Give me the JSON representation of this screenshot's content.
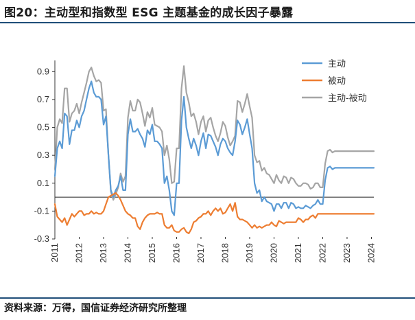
{
  "title": "图20：主动型和指数型 ESG 主题基金的成长因子暴露",
  "source": "资料来源：万得，国信证券经济研究所整理",
  "chart_data": {
    "type": "line",
    "title": "图20：主动型和指数型 ESG 主题基金的成长因子暴露",
    "xlabel": "",
    "ylabel": "",
    "ylim": [
      -0.3,
      1.0
    ],
    "yticks": [
      "0.9",
      "0.7",
      "0.5",
      "0.3",
      "0.1",
      "-0.1",
      "-0.3"
    ],
    "ytick_values": [
      0.9,
      0.7,
      0.5,
      0.3,
      0.1,
      -0.1,
      -0.3
    ],
    "xlim": [
      2011,
      2024.1
    ],
    "xticks": [
      "2011",
      "2012",
      "2013",
      "2014",
      "2015",
      "2016",
      "2017",
      "2018",
      "2019",
      "2020",
      "2021",
      "2022",
      "2023",
      "2024"
    ],
    "xtick_values": [
      2011,
      2012,
      2013,
      2014,
      2015,
      2016,
      2017,
      2018,
      2019,
      2020,
      2021,
      2022,
      2023,
      2024
    ],
    "legend_position": "top-right",
    "series": [
      {
        "name": "主动",
        "color": "#5b9bd5",
        "x": [
          2011.0,
          2011.1,
          2011.2,
          2011.3,
          2011.4,
          2011.5,
          2011.6,
          2011.7,
          2011.8,
          2011.9,
          2012.0,
          2012.1,
          2012.2,
          2012.3,
          2012.4,
          2012.5,
          2012.6,
          2012.7,
          2012.8,
          2012.9,
          2013.0,
          2013.1,
          2013.2,
          2013.3,
          2013.4,
          2013.5,
          2013.6,
          2013.7,
          2013.8,
          2013.9,
          2014.0,
          2014.1,
          2014.2,
          2014.3,
          2014.4,
          2014.5,
          2014.6,
          2014.7,
          2014.8,
          2014.9,
          2015.0,
          2015.1,
          2015.2,
          2015.3,
          2015.4,
          2015.5,
          2015.6,
          2015.7,
          2015.8,
          2015.9,
          2016.0,
          2016.1,
          2016.2,
          2016.3,
          2016.4,
          2016.5,
          2016.6,
          2016.7,
          2016.8,
          2016.9,
          2017.0,
          2017.1,
          2017.2,
          2017.3,
          2017.4,
          2017.5,
          2017.6,
          2017.7,
          2017.8,
          2017.9,
          2018.0,
          2018.1,
          2018.2,
          2018.3,
          2018.4,
          2018.5,
          2018.6,
          2018.7,
          2018.8,
          2018.9,
          2019.0,
          2019.1,
          2019.2,
          2019.3,
          2019.4,
          2019.5,
          2019.6,
          2019.7,
          2019.8,
          2019.9,
          2020.0,
          2020.1,
          2020.2,
          2020.3,
          2020.4,
          2020.5,
          2020.6,
          2020.7,
          2020.8,
          2020.9,
          2021.0,
          2021.1,
          2021.2,
          2021.3,
          2021.4,
          2021.5,
          2021.6,
          2021.7,
          2021.8,
          2021.9,
          2022.0,
          2022.1,
          2022.2,
          2022.3,
          2022.4,
          2022.5,
          2022.6,
          2022.7,
          2022.8,
          2022.9,
          2023.0,
          2023.1,
          2023.2,
          2023.3,
          2023.4,
          2023.5,
          2023.6,
          2023.7,
          2023.8,
          2023.9,
          2024.0,
          2024.1
        ],
        "values": [
          0.15,
          0.35,
          0.4,
          0.35,
          0.6,
          0.58,
          0.38,
          0.48,
          0.48,
          0.55,
          0.5,
          0.58,
          0.62,
          0.7,
          0.78,
          0.83,
          0.75,
          0.72,
          0.72,
          0.7,
          0.52,
          0.58,
          0.3,
          0.05,
          0.0,
          0.05,
          0.08,
          0.15,
          0.05,
          0.05,
          0.45,
          0.56,
          0.47,
          0.47,
          0.49,
          0.45,
          0.42,
          0.36,
          0.48,
          0.45,
          0.52,
          0.4,
          0.4,
          0.38,
          0.35,
          0.1,
          0.15,
          0.05,
          -0.1,
          -0.13,
          0.1,
          0.1,
          0.55,
          0.72,
          0.5,
          0.42,
          0.35,
          0.42,
          0.37,
          0.3,
          0.4,
          0.46,
          0.35,
          0.45,
          0.44,
          0.4,
          0.36,
          0.3,
          0.38,
          0.42,
          0.4,
          0.35,
          0.32,
          0.3,
          0.4,
          0.55,
          0.52,
          0.45,
          0.5,
          0.56,
          0.45,
          0.35,
          0.1,
          0.03,
          0.05,
          -0.03,
          0.0,
          -0.03,
          -0.04,
          -0.05,
          -0.1,
          -0.05,
          -0.05,
          -0.08,
          -0.04,
          -0.04,
          -0.08,
          -0.04,
          -0.05,
          -0.08,
          -0.07,
          -0.08,
          -0.08,
          -0.06,
          -0.07,
          -0.08,
          -0.06,
          -0.05,
          -0.02,
          -0.05,
          -0.05,
          0.12,
          0.21,
          0.22,
          0.2,
          0.21,
          0.21,
          0.21,
          0.21,
          0.21,
          0.21,
          0.21,
          0.21,
          0.21,
          0.21,
          0.21,
          0.21,
          0.21,
          0.21,
          0.21,
          0.21,
          0.21
        ]
      },
      {
        "name": "被动",
        "color": "#ed7d31",
        "x": [
          2011.0,
          2011.1,
          2011.2,
          2011.3,
          2011.4,
          2011.5,
          2011.6,
          2011.7,
          2011.8,
          2011.9,
          2012.0,
          2012.1,
          2012.2,
          2012.3,
          2012.4,
          2012.5,
          2012.6,
          2012.7,
          2012.8,
          2012.9,
          2013.0,
          2013.1,
          2013.2,
          2013.3,
          2013.4,
          2013.5,
          2013.6,
          2013.7,
          2013.8,
          2013.9,
          2014.0,
          2014.1,
          2014.2,
          2014.3,
          2014.4,
          2014.5,
          2014.6,
          2014.7,
          2014.8,
          2014.9,
          2015.0,
          2015.1,
          2015.2,
          2015.3,
          2015.4,
          2015.5,
          2015.6,
          2015.7,
          2015.8,
          2015.9,
          2016.0,
          2016.1,
          2016.2,
          2016.3,
          2016.4,
          2016.5,
          2016.6,
          2016.7,
          2016.8,
          2016.9,
          2017.0,
          2017.1,
          2017.2,
          2017.3,
          2017.4,
          2017.5,
          2017.6,
          2017.7,
          2017.8,
          2017.9,
          2018.0,
          2018.1,
          2018.2,
          2018.3,
          2018.4,
          2018.5,
          2018.6,
          2018.7,
          2018.8,
          2018.9,
          2019.0,
          2019.1,
          2019.2,
          2019.3,
          2019.4,
          2019.5,
          2019.6,
          2019.7,
          2019.8,
          2019.9,
          2020.0,
          2020.1,
          2020.2,
          2020.3,
          2020.4,
          2020.5,
          2020.6,
          2020.7,
          2020.8,
          2020.9,
          2021.0,
          2021.1,
          2021.2,
          2021.3,
          2021.4,
          2021.5,
          2021.6,
          2021.7,
          2021.8,
          2021.9,
          2022.0,
          2022.1,
          2022.2,
          2022.3,
          2022.4,
          2022.5,
          2022.6,
          2022.7,
          2022.8,
          2022.9,
          2023.0,
          2023.1,
          2023.2,
          2023.3,
          2023.4,
          2023.5,
          2023.6,
          2023.7,
          2023.8,
          2023.9,
          2024.0,
          2024.1
        ],
        "values": [
          -0.05,
          -0.14,
          -0.16,
          -0.18,
          -0.15,
          -0.2,
          -0.16,
          -0.12,
          -0.14,
          -0.12,
          -0.1,
          -0.1,
          -0.13,
          -0.12,
          -0.12,
          -0.1,
          -0.12,
          -0.11,
          -0.12,
          -0.12,
          -0.1,
          -0.05,
          0.0,
          0.01,
          0.02,
          0.03,
          0.01,
          -0.02,
          -0.06,
          -0.1,
          -0.12,
          -0.13,
          -0.15,
          -0.15,
          -0.21,
          -0.23,
          -0.18,
          -0.15,
          -0.13,
          -0.12,
          -0.12,
          -0.12,
          -0.11,
          -0.12,
          -0.12,
          -0.2,
          -0.22,
          -0.22,
          -0.2,
          -0.24,
          -0.25,
          -0.25,
          -0.23,
          -0.22,
          -0.25,
          -0.26,
          -0.23,
          -0.18,
          -0.17,
          -0.15,
          -0.14,
          -0.12,
          -0.12,
          -0.1,
          -0.13,
          -0.1,
          -0.08,
          -0.1,
          -0.08,
          -0.12,
          -0.11,
          -0.08,
          -0.05,
          -0.1,
          -0.04,
          -0.14,
          -0.16,
          -0.16,
          -0.17,
          -0.18,
          -0.2,
          -0.22,
          -0.2,
          -0.22,
          -0.21,
          -0.22,
          -0.21,
          -0.2,
          -0.2,
          -0.18,
          -0.2,
          -0.21,
          -0.17,
          -0.18,
          -0.19,
          -0.18,
          -0.18,
          -0.18,
          -0.18,
          -0.18,
          -0.15,
          -0.16,
          -0.18,
          -0.16,
          -0.16,
          -0.14,
          -0.13,
          -0.15,
          -0.12,
          -0.12,
          -0.12,
          -0.12,
          -0.12,
          -0.12,
          -0.12,
          -0.12,
          -0.12,
          -0.12,
          -0.12,
          -0.12,
          -0.12,
          -0.12,
          -0.12,
          -0.12,
          -0.12,
          -0.12,
          -0.12,
          -0.12,
          -0.12,
          -0.12,
          -0.12,
          -0.12
        ]
      },
      {
        "name": "主动-被动",
        "color": "#a5a5a5",
        "x": [
          2011.0,
          2011.1,
          2011.2,
          2011.3,
          2011.4,
          2011.5,
          2011.6,
          2011.7,
          2011.8,
          2011.9,
          2012.0,
          2012.1,
          2012.2,
          2012.3,
          2012.4,
          2012.5,
          2012.6,
          2012.7,
          2012.8,
          2012.9,
          2013.0,
          2013.1,
          2013.2,
          2013.3,
          2013.4,
          2013.5,
          2013.6,
          2013.7,
          2013.8,
          2013.9,
          2014.0,
          2014.1,
          2014.2,
          2014.3,
          2014.4,
          2014.5,
          2014.6,
          2014.7,
          2014.8,
          2014.9,
          2015.0,
          2015.1,
          2015.2,
          2015.3,
          2015.4,
          2015.5,
          2015.6,
          2015.7,
          2015.8,
          2015.9,
          2016.0,
          2016.1,
          2016.2,
          2016.3,
          2016.4,
          2016.5,
          2016.6,
          2016.7,
          2016.8,
          2016.9,
          2017.0,
          2017.1,
          2017.2,
          2017.3,
          2017.4,
          2017.5,
          2017.6,
          2017.7,
          2017.8,
          2017.9,
          2018.0,
          2018.1,
          2018.2,
          2018.3,
          2018.4,
          2018.5,
          2018.6,
          2018.7,
          2018.8,
          2018.9,
          2019.0,
          2019.1,
          2019.2,
          2019.3,
          2019.4,
          2019.5,
          2019.6,
          2019.7,
          2019.8,
          2019.9,
          2020.0,
          2020.1,
          2020.2,
          2020.3,
          2020.4,
          2020.5,
          2020.6,
          2020.7,
          2020.8,
          2020.9,
          2021.0,
          2021.1,
          2021.2,
          2021.3,
          2021.4,
          2021.5,
          2021.6,
          2021.7,
          2021.8,
          2021.9,
          2022.0,
          2022.1,
          2022.2,
          2022.3,
          2022.4,
          2022.5,
          2022.6,
          2022.7,
          2022.8,
          2022.9,
          2023.0,
          2023.1,
          2023.2,
          2023.3,
          2023.4,
          2023.5,
          2023.6,
          2023.7,
          2023.8,
          2023.9,
          2024.0,
          2024.1
        ],
        "values": [
          0.2,
          0.5,
          0.56,
          0.53,
          0.78,
          0.78,
          0.54,
          0.6,
          0.62,
          0.67,
          0.6,
          0.68,
          0.75,
          0.82,
          0.9,
          0.93,
          0.87,
          0.83,
          0.84,
          0.82,
          0.62,
          0.63,
          0.3,
          0.04,
          -0.02,
          0.02,
          0.07,
          0.17,
          0.11,
          0.15,
          0.57,
          0.69,
          0.62,
          0.62,
          0.7,
          0.68,
          0.6,
          0.51,
          0.61,
          0.57,
          0.64,
          0.52,
          0.51,
          0.5,
          0.47,
          0.3,
          0.37,
          0.27,
          0.1,
          0.11,
          0.35,
          0.35,
          0.78,
          0.94,
          0.75,
          0.68,
          0.58,
          0.6,
          0.54,
          0.45,
          0.54,
          0.58,
          0.47,
          0.55,
          0.57,
          0.5,
          0.44,
          0.4,
          0.46,
          0.54,
          0.51,
          0.43,
          0.37,
          0.4,
          0.44,
          0.69,
          0.68,
          0.61,
          0.67,
          0.74,
          0.65,
          0.57,
          0.3,
          0.25,
          0.26,
          0.19,
          0.21,
          0.17,
          0.16,
          0.13,
          0.1,
          0.16,
          0.12,
          0.1,
          0.15,
          0.14,
          0.1,
          0.14,
          0.13,
          0.1,
          0.08,
          0.08,
          0.1,
          0.1,
          0.09,
          0.06,
          0.07,
          0.1,
          0.1,
          0.07,
          0.07,
          0.24,
          0.33,
          0.34,
          0.32,
          0.33,
          0.33,
          0.33,
          0.33,
          0.33,
          0.33,
          0.33,
          0.33,
          0.33,
          0.33,
          0.33,
          0.33,
          0.33,
          0.33,
          0.33,
          0.33,
          0.33
        ]
      }
    ]
  }
}
